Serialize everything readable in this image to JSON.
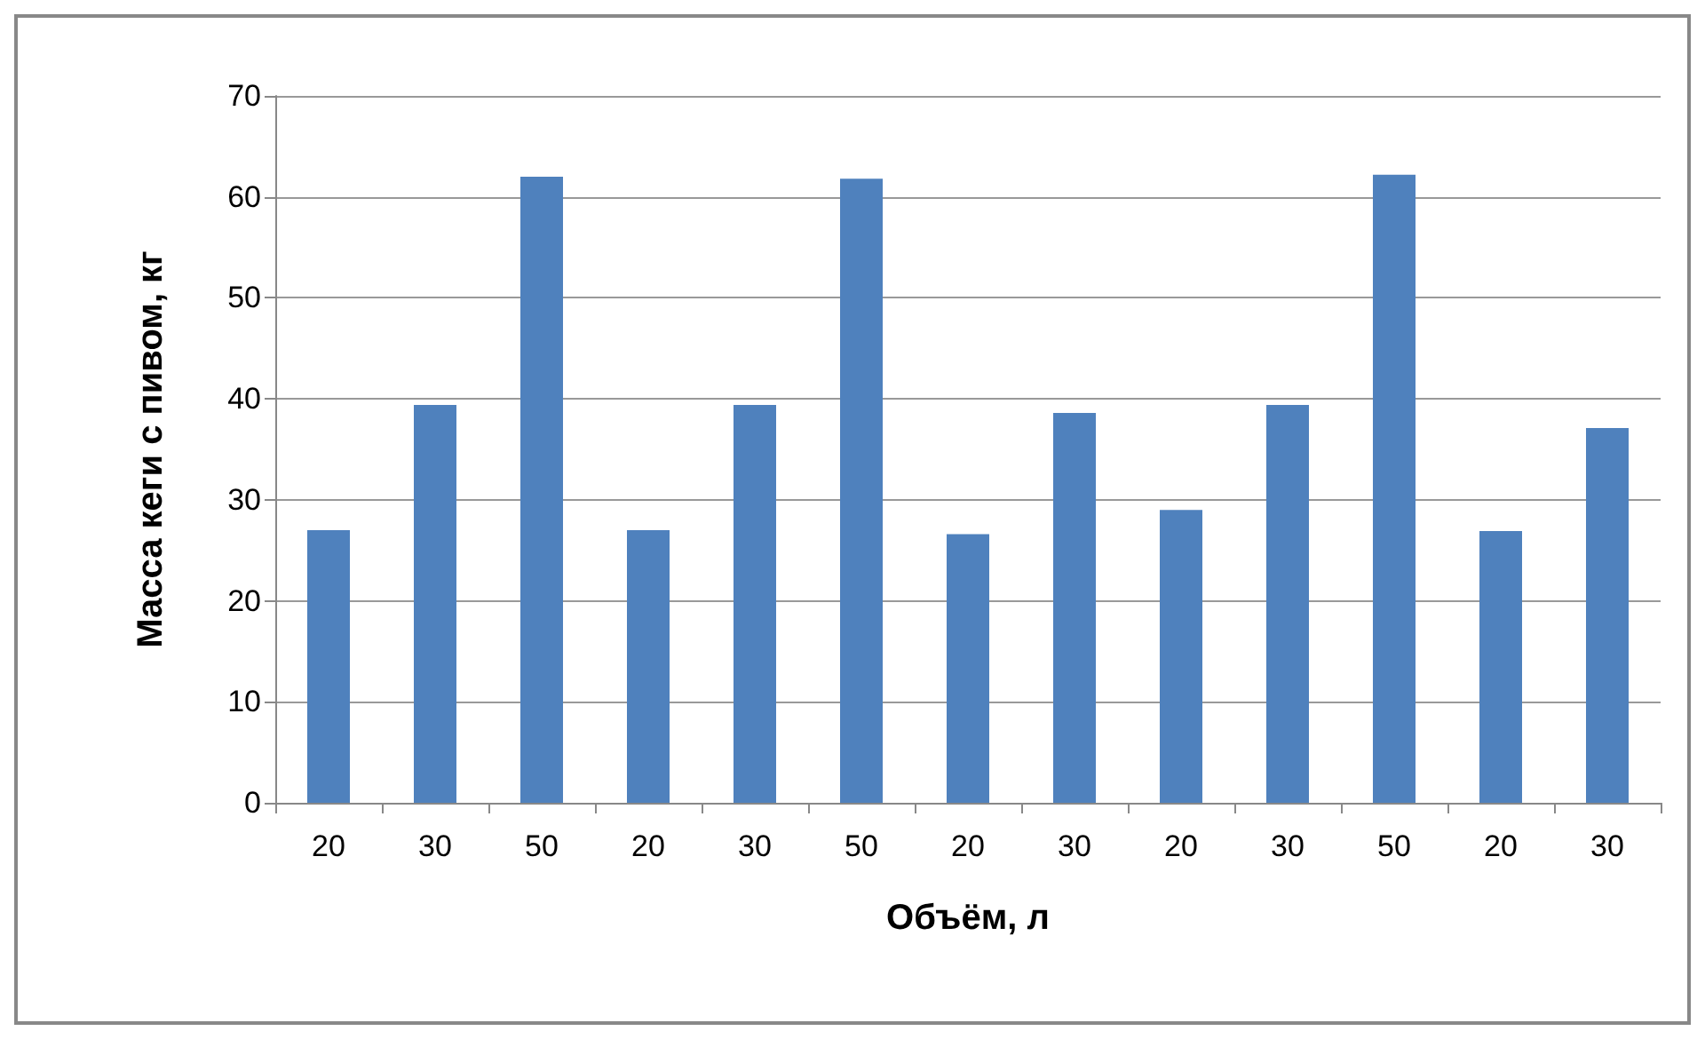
{
  "chart_data": {
    "type": "bar",
    "xlabel": "Объём, л",
    "ylabel": "Масса кеги с пивом, кг",
    "categories": [
      "20",
      "30",
      "50",
      "20",
      "30",
      "50",
      "20",
      "30",
      "20",
      "30",
      "50",
      "20",
      "30"
    ],
    "values": [
      27.0,
      39.4,
      62.0,
      27.0,
      39.4,
      61.8,
      26.6,
      38.6,
      29.0,
      39.4,
      62.2,
      26.9,
      37.1
    ],
    "color": "#4f81bd",
    "ylim": [
      0,
      70
    ],
    "yticks": [
      0,
      10,
      20,
      30,
      40,
      50,
      60,
      70
    ],
    "grid": "y"
  }
}
